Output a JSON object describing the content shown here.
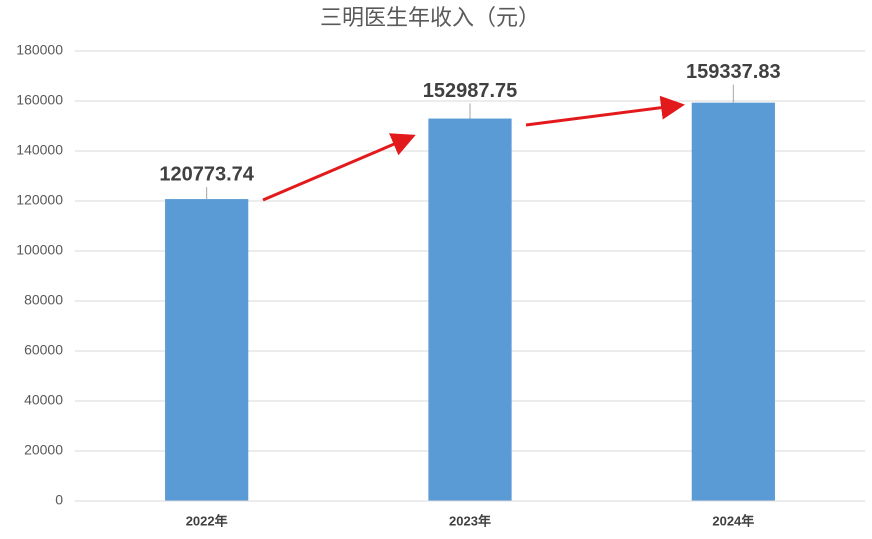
{
  "chart_data": {
    "type": "bar",
    "title": "三明医生年收入（元）",
    "categories": [
      "2022年",
      "2023年",
      "2024年"
    ],
    "values": [
      120773.74,
      152987.75,
      159337.83
    ],
    "color": "#5b9bd5",
    "ylim": [
      0,
      180000
    ],
    "yticks": [
      0,
      20000,
      40000,
      60000,
      80000,
      100000,
      120000,
      140000,
      160000,
      180000
    ],
    "grid": true
  }
}
